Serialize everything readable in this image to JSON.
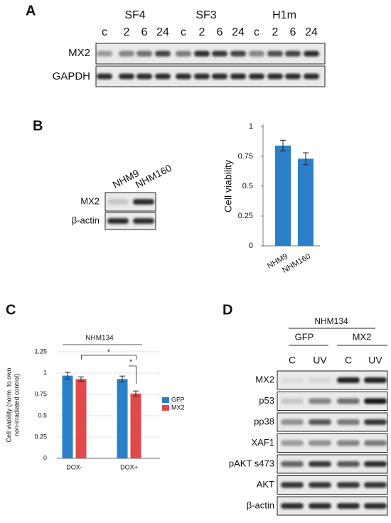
{
  "figure": {
    "a": {
      "label": "A",
      "groups": [
        "SF4",
        "SF3",
        "H1m"
      ],
      "lanes": [
        "c",
        "2",
        "6",
        "24",
        "c",
        "2",
        "6",
        "24",
        "c",
        "2",
        "6",
        "24"
      ],
      "rows": [
        "MX2",
        "GAPDH"
      ]
    },
    "b": {
      "label": "B",
      "lanes": [
        "NHM9",
        "NHM160"
      ],
      "rows": [
        "MX2",
        "β-actin"
      ]
    },
    "c": {
      "label": "C"
    },
    "d": {
      "label": "D",
      "cell_line": "NHM134",
      "groups": [
        "GFP",
        "MX2"
      ],
      "lanes": [
        "C",
        "UV",
        "C",
        "UV"
      ],
      "rows": [
        "MX2",
        "p53",
        "pp38",
        "XAF1",
        "pAKT s473",
        "AKT",
        "β-actin"
      ]
    }
  },
  "chart_data": [
    {
      "type": "bar",
      "y_label": "Cell viability",
      "categories": [
        "NHM9",
        "NHM160"
      ],
      "values": [
        0.84,
        0.73
      ],
      "errors": [
        0.045,
        0.05
      ],
      "color": "#2a7fc8",
      "ylim": [
        0,
        1
      ],
      "yticks": [
        0,
        0.25,
        0.5,
        0.75,
        1
      ]
    },
    {
      "type": "bar",
      "annotation": "NHM134",
      "y_label": [
        "Cell viability (norm. to own",
        "non-irradiated control)"
      ],
      "categories": [
        "DOX-",
        "DOX+"
      ],
      "series": [
        {
          "name": "GFP",
          "color": "#2a7fc8",
          "values": [
            0.97,
            0.93
          ],
          "errors": [
            0.04,
            0.035
          ]
        },
        {
          "name": "MX2",
          "color": "#e04a4a",
          "values": [
            0.93,
            0.76
          ],
          "errors": [
            0.025,
            0.03
          ]
        }
      ],
      "ylim": [
        0,
        1.25
      ],
      "yticks": [
        0,
        0.25,
        0.5,
        0.75,
        1,
        1.25
      ],
      "grid": true,
      "significance": [
        "*",
        "*"
      ],
      "legend": "right"
    }
  ]
}
